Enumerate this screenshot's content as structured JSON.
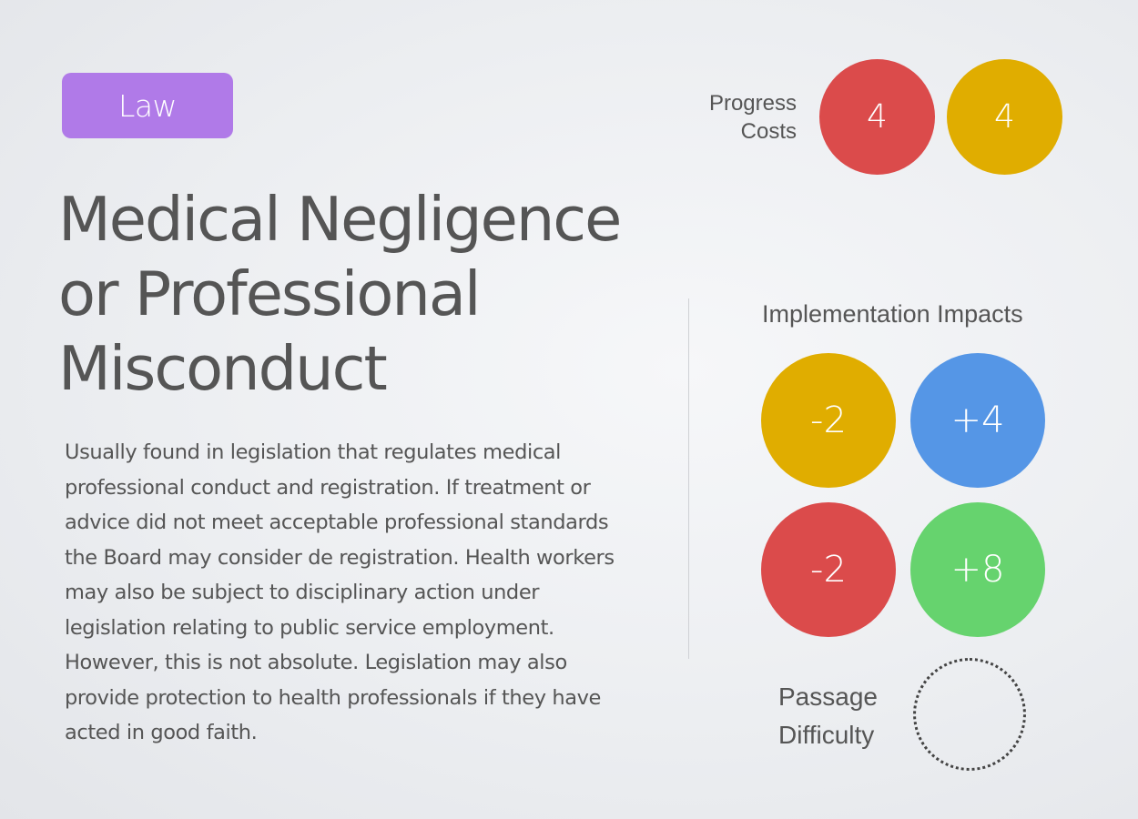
{
  "category": {
    "label": "Law",
    "color": "#b07ae8"
  },
  "title_lines": [
    "Medical Negligence",
    "or Professional",
    "Misconduct"
  ],
  "description_lines": [
    "Usually found in legislation that regulates medical",
    "professional conduct and registration. If treatment or",
    "advice did not meet acceptable professional standards",
    "the Board may consider de registration. Health workers",
    "may also be subject to disciplinary action under",
    "legislation relating to public service employment.",
    "However, this is not absolute. Legislation may also",
    "provide protection to health professionals if they have",
    "acted in good faith."
  ],
  "progress_costs": {
    "label_lines": [
      "Progress",
      "Costs"
    ],
    "values": [
      {
        "value": "4",
        "color": "#db4b4b"
      },
      {
        "value": "4",
        "color": "#e0ad00"
      }
    ]
  },
  "implementation_impacts": {
    "heading": "Implementation Impacts",
    "values": [
      {
        "value": "-2",
        "color": "#e0ad00"
      },
      {
        "value": "+4",
        "color": "#5596e6"
      },
      {
        "value": "-2",
        "color": "#db4b4b"
      },
      {
        "value": "+8",
        "color": "#66d36e"
      }
    ]
  },
  "passage_difficulty": {
    "label_lines": [
      "Passage",
      "Difficulty"
    ],
    "value": ""
  }
}
